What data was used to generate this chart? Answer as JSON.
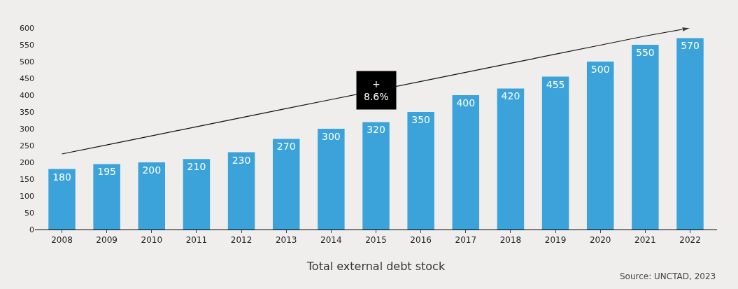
{
  "chart_data": {
    "type": "bar",
    "xlabel": "Total external debt stock",
    "categories": [
      "2008",
      "2009",
      "2010",
      "2011",
      "2012",
      "2013",
      "2014",
      "2015",
      "2016",
      "2017",
      "2018",
      "2019",
      "2020",
      "2021",
      "2022"
    ],
    "series": [
      {
        "color": "#3ba3da",
        "values": [
          180,
          195,
          200,
          210,
          230,
          270,
          300,
          320,
          350,
          400,
          420,
          455,
          500,
          550,
          570
        ],
        "value_labels": [
          "180",
          "195",
          "200",
          "210",
          "230",
          "270",
          "300",
          "320",
          "350",
          "400",
          "420",
          "455",
          "500",
          "550",
          "570"
        ]
      },
      {
        "type": "line",
        "color": "#111111",
        "values": [
          225,
          252,
          279,
          306,
          333,
          360,
          387,
          null,
          441,
          468,
          495,
          522,
          549,
          576,
          600
        ]
      }
    ],
    "ylim": [
      0,
      600
    ],
    "yticks": [
      0,
      50,
      100,
      150,
      200,
      250,
      300,
      350,
      400,
      450,
      500,
      550,
      600
    ],
    "grid": false,
    "annotations": [
      "+\n8.6%",
      "Source: UNCTAD, 2023"
    ]
  }
}
